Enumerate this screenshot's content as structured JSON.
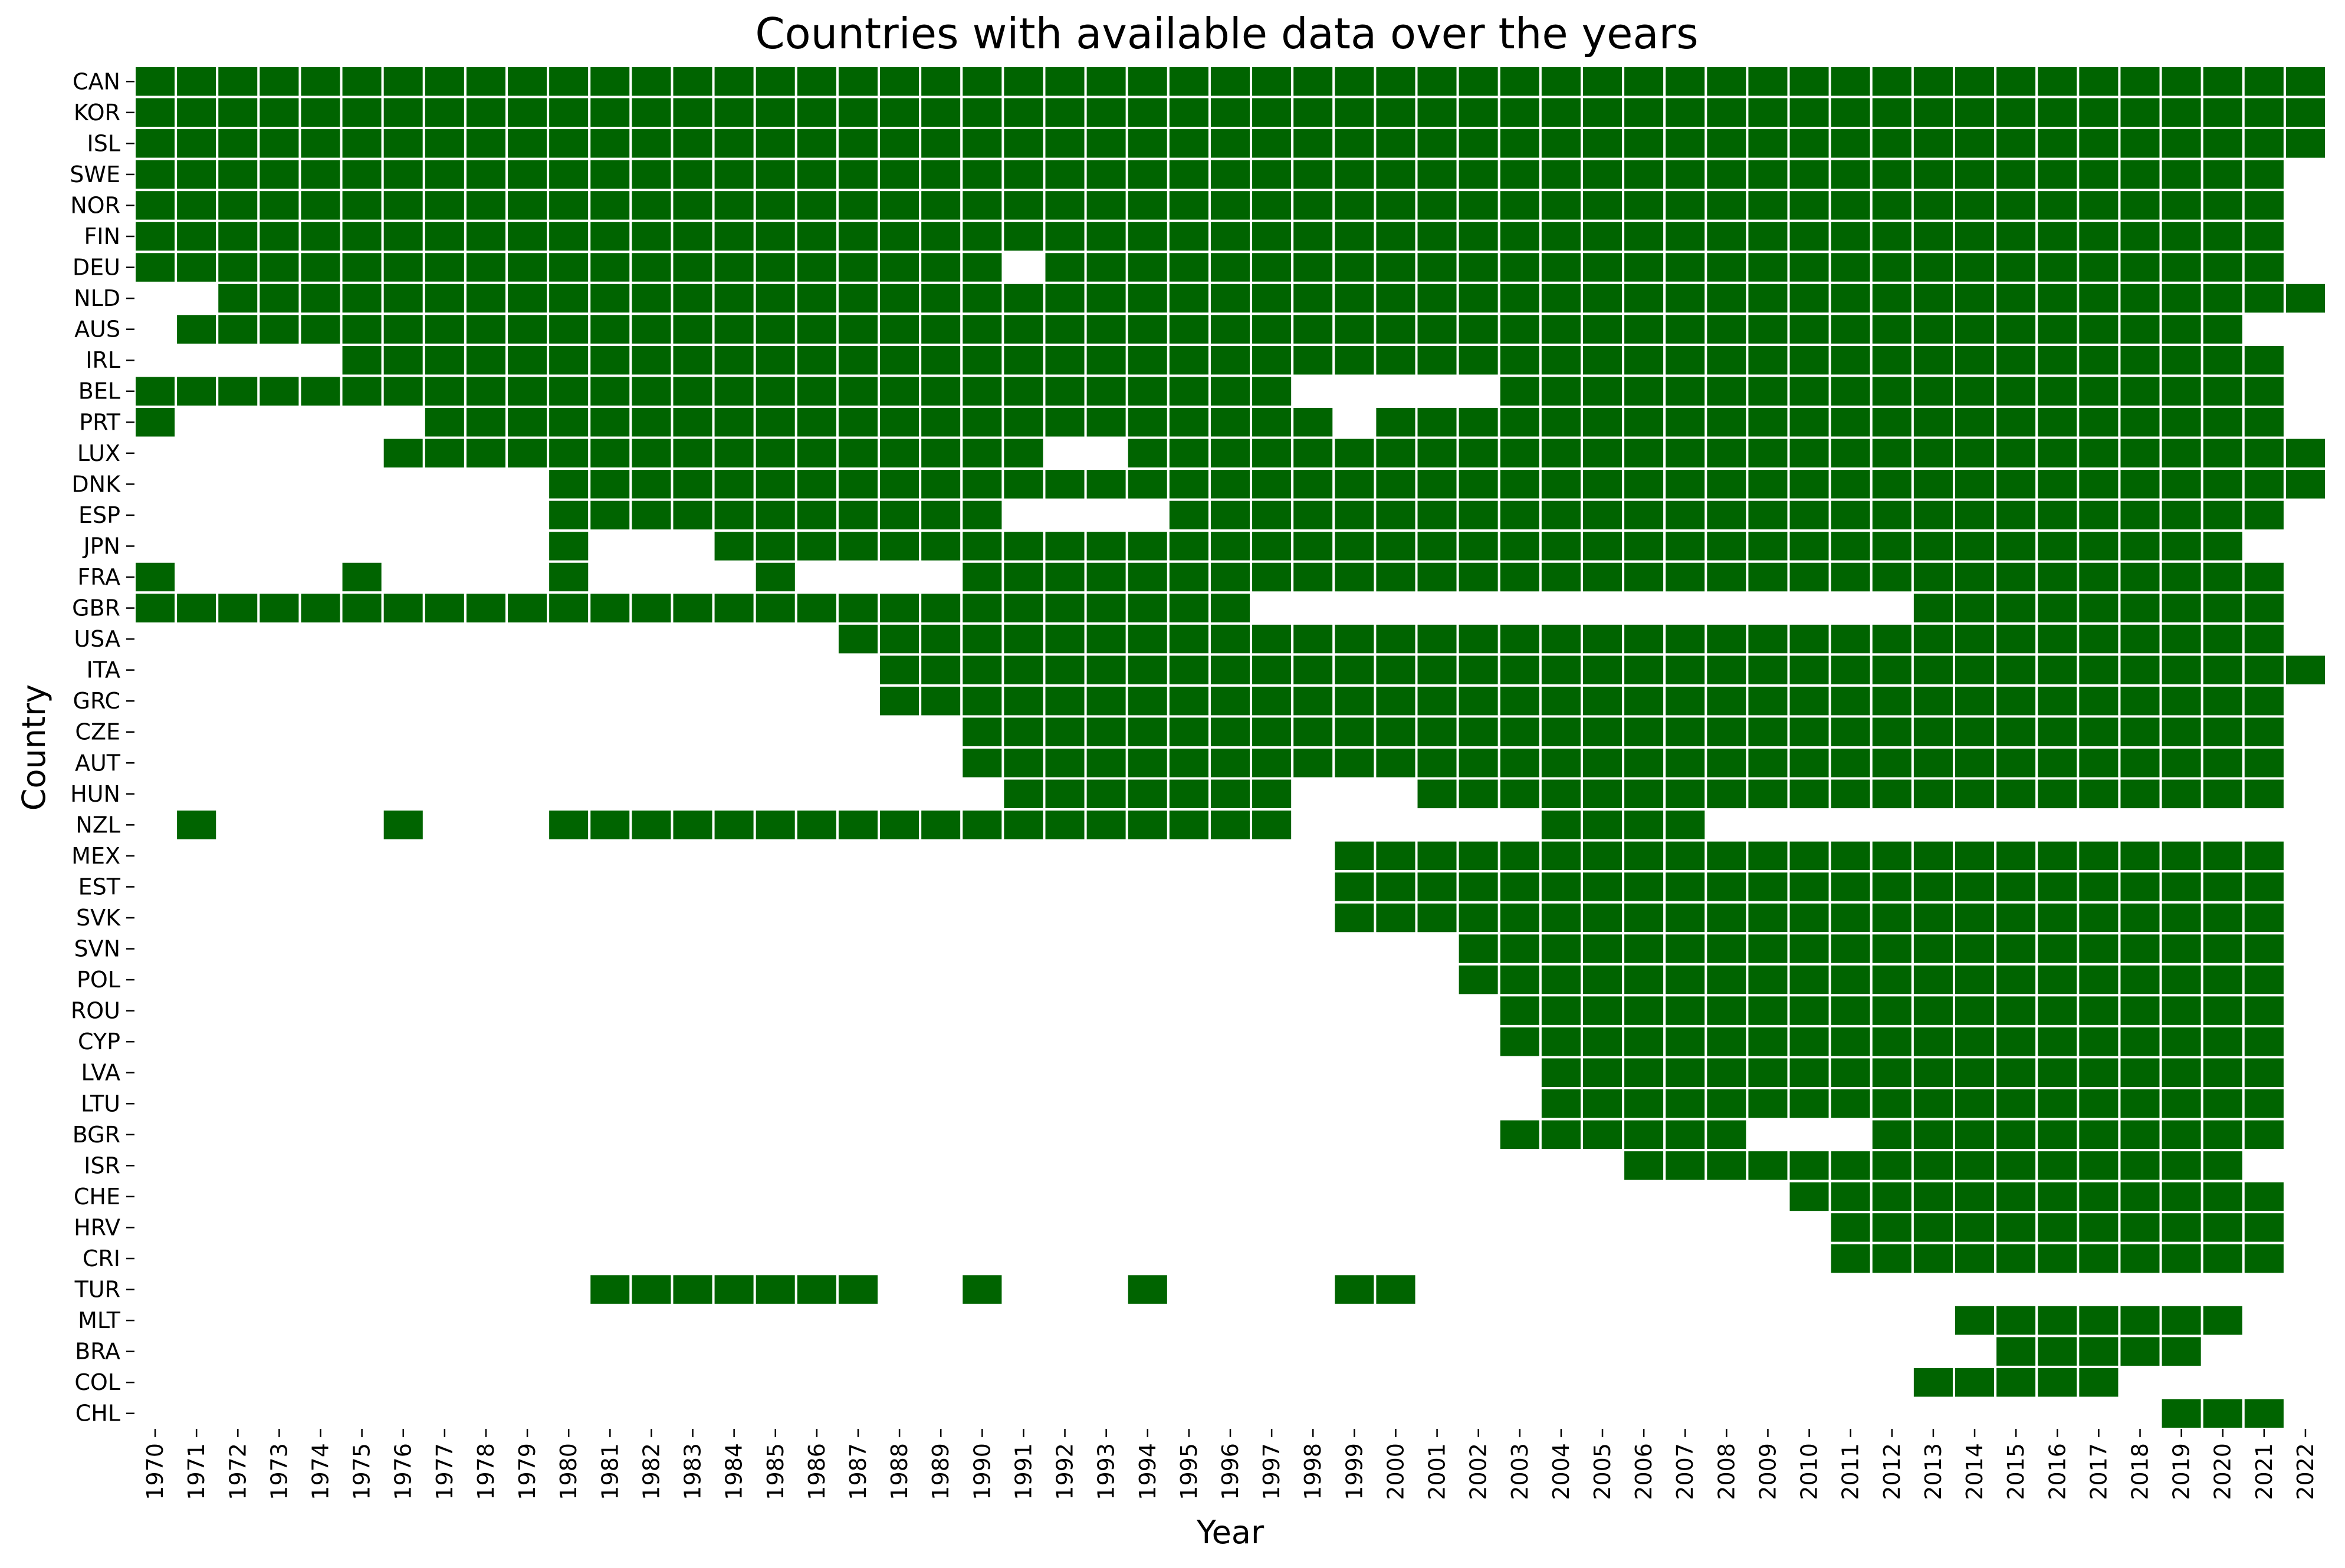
{
  "chart_data": {
    "type": "heatmap",
    "title": "Countries with available data over the years",
    "xlabel": "Year",
    "ylabel": "Country",
    "filled_color": "#006400",
    "empty_color": "#ffffff",
    "grid_line_color": "#ffffff",
    "legend": "none",
    "years": [
      1970,
      1971,
      1972,
      1973,
      1974,
      1975,
      1976,
      1977,
      1978,
      1979,
      1980,
      1981,
      1982,
      1983,
      1984,
      1985,
      1986,
      1987,
      1988,
      1989,
      1990,
      1991,
      1992,
      1993,
      1994,
      1995,
      1996,
      1997,
      1998,
      1999,
      2000,
      2001,
      2002,
      2003,
      2004,
      2005,
      2006,
      2007,
      2008,
      2009,
      2010,
      2011,
      2012,
      2013,
      2014,
      2015,
      2016,
      2017,
      2018,
      2019,
      2020,
      2021,
      2022
    ],
    "countries": [
      "CAN",
      "KOR",
      "ISL",
      "SWE",
      "NOR",
      "FIN",
      "DEU",
      "NLD",
      "AUS",
      "IRL",
      "BEL",
      "PRT",
      "LUX",
      "DNK",
      "ESP",
      "JPN",
      "FRA",
      "GBR",
      "USA",
      "ITA",
      "GRC",
      "CZE",
      "AUT",
      "HUN",
      "NZL",
      "MEX",
      "EST",
      "SVK",
      "SVN",
      "POL",
      "ROU",
      "CYP",
      "LVA",
      "LTU",
      "BGR",
      "ISR",
      "CHE",
      "HRV",
      "CRI",
      "TUR",
      "MLT",
      "BRA",
      "COL",
      "CHL"
    ],
    "available_years": {
      "CAN": [
        [
          1970,
          2022
        ]
      ],
      "KOR": [
        [
          1970,
          2022
        ]
      ],
      "ISL": [
        [
          1970,
          2022
        ]
      ],
      "SWE": [
        [
          1970,
          2021
        ]
      ],
      "NOR": [
        [
          1970,
          2021
        ]
      ],
      "FIN": [
        [
          1970,
          2021
        ]
      ],
      "DEU": [
        [
          1970,
          1990
        ],
        [
          1992,
          2021
        ]
      ],
      "NLD": [
        [
          1972,
          2022
        ]
      ],
      "AUS": [
        [
          1971,
          2020
        ]
      ],
      "IRL": [
        [
          1975,
          2021
        ]
      ],
      "BEL": [
        [
          1970,
          1997
        ],
        [
          2003,
          2021
        ]
      ],
      "PRT": [
        [
          1970,
          1970
        ],
        [
          1977,
          1998
        ],
        [
          2000,
          2021
        ]
      ],
      "LUX": [
        [
          1976,
          1991
        ],
        [
          1994,
          2022
        ]
      ],
      "DNK": [
        [
          1980,
          2022
        ]
      ],
      "ESP": [
        [
          1980,
          1990
        ],
        [
          1995,
          2021
        ]
      ],
      "JPN": [
        [
          1980,
          1980
        ],
        [
          1984,
          2020
        ]
      ],
      "FRA": [
        [
          1970,
          1970
        ],
        [
          1975,
          1975
        ],
        [
          1980,
          1980
        ],
        [
          1985,
          1985
        ],
        [
          1990,
          2021
        ]
      ],
      "GBR": [
        [
          1970,
          1996
        ],
        [
          2013,
          2021
        ]
      ],
      "USA": [
        [
          1987,
          2021
        ]
      ],
      "ITA": [
        [
          1988,
          2021
        ],
        [
          2022,
          2022
        ]
      ],
      "GRC": [
        [
          1988,
          2021
        ]
      ],
      "CZE": [
        [
          1990,
          2021
        ]
      ],
      "AUT": [
        [
          1990,
          2021
        ]
      ],
      "HUN": [
        [
          1991,
          1997
        ],
        [
          2001,
          2021
        ]
      ],
      "NZL": [
        [
          1971,
          1971
        ],
        [
          1976,
          1976
        ],
        [
          1980,
          1997
        ],
        [
          2004,
          2007
        ]
      ],
      "MEX": [
        [
          1999,
          2021
        ]
      ],
      "EST": [
        [
          1999,
          2021
        ]
      ],
      "SVK": [
        [
          1999,
          2021
        ]
      ],
      "SVN": [
        [
          2002,
          2021
        ]
      ],
      "POL": [
        [
          2002,
          2021
        ]
      ],
      "ROU": [
        [
          2003,
          2021
        ]
      ],
      "CYP": [
        [
          2003,
          2021
        ]
      ],
      "LVA": [
        [
          2004,
          2021
        ]
      ],
      "LTU": [
        [
          2004,
          2021
        ]
      ],
      "BGR": [
        [
          2003,
          2008
        ],
        [
          2012,
          2021
        ]
      ],
      "ISR": [
        [
          2006,
          2020
        ]
      ],
      "CHE": [
        [
          2010,
          2021
        ]
      ],
      "HRV": [
        [
          2011,
          2021
        ]
      ],
      "CRI": [
        [
          2011,
          2021
        ]
      ],
      "TUR": [
        [
          1981,
          1987
        ],
        [
          1990,
          1990
        ],
        [
          1994,
          1994
        ],
        [
          1999,
          2000
        ]
      ],
      "MLT": [
        [
          2014,
          2020
        ]
      ],
      "BRA": [
        [
          2015,
          2019
        ]
      ],
      "COL": [
        [
          2013,
          2017
        ]
      ],
      "CHL": [
        [
          2019,
          2021
        ]
      ]
    }
  }
}
